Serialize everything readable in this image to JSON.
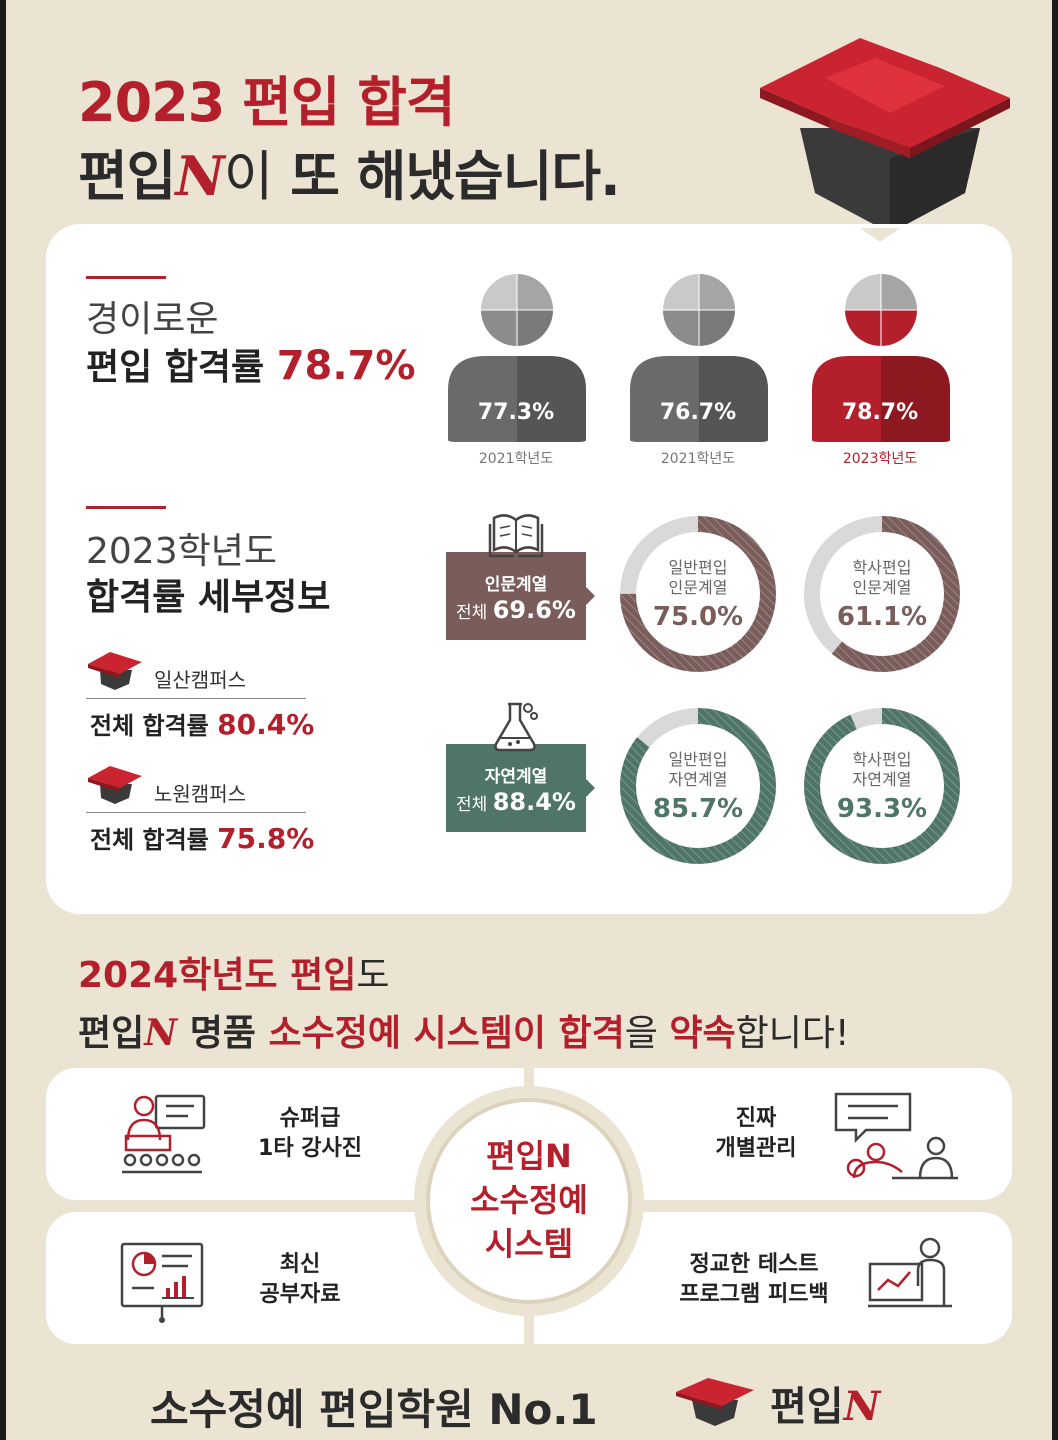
{
  "header": {
    "line1": "2023 편입 합격",
    "line2_pre": "편입",
    "line2_n": "N",
    "line2_mid": "이",
    "line2_post": " 또 해냈습니다."
  },
  "pass_rate": {
    "label_light": "경이로운",
    "label_bold": "편입 합격률",
    "value": "78.7%",
    "years": [
      {
        "value": "77.3%",
        "label": "2021학년도",
        "highlight": false
      },
      {
        "value": "76.7%",
        "label": "2021학년도",
        "highlight": false
      },
      {
        "value": "78.7%",
        "label": "2023학년도",
        "highlight": true
      }
    ]
  },
  "detail": {
    "label_light": "2023학년도",
    "label_bold": "합격률 세부정보",
    "campuses": [
      {
        "name": "일산캠퍼스",
        "rate_label": "전체 합격률",
        "rate": "80.4%"
      },
      {
        "name": "노원캠퍼스",
        "rate_label": "전체 합격률",
        "rate": "75.8%"
      }
    ],
    "humanities": {
      "title": "인문계열",
      "total_label": "전체",
      "total": "69.6%",
      "color": "#7a5d5a",
      "rings": [
        {
          "line1": "일반편입",
          "line2": "인문계열",
          "value": "75.0%",
          "fraction": 0.75
        },
        {
          "line1": "학사편입",
          "line2": "인문계열",
          "value": "61.1%",
          "fraction": 0.611
        }
      ]
    },
    "sciences": {
      "title": "자연계열",
      "total_label": "전체",
      "total": "88.4%",
      "color": "#4f7566",
      "rings": [
        {
          "line1": "일반편입",
          "line2": "자연계열",
          "value": "85.7%",
          "fraction": 0.857
        },
        {
          "line1": "학사편입",
          "line2": "자연계열",
          "value": "93.3%",
          "fraction": 0.933
        }
      ]
    }
  },
  "promise": {
    "line1_red": "2024학년도 편입",
    "line1_light": "도",
    "line2_pre": "편입",
    "line2_n": "N",
    "line2_a": " 명품 ",
    "line2_b": "소수정예 시스템이 합격",
    "line2_c": "을 ",
    "line2_d": "약속",
    "line2_e": "합니다!"
  },
  "system": {
    "center": [
      "편입N",
      "소수정예",
      "시스템"
    ],
    "features": [
      {
        "line1": "슈퍼급",
        "line2": "1타 강사진"
      },
      {
        "line1": "진짜",
        "line2": "개별관리"
      },
      {
        "line1": "최신",
        "line2": "공부자료"
      },
      {
        "line1": "정교한 테스트",
        "line2": "프로그램 피드백"
      }
    ]
  },
  "footer": {
    "slogan": "소수정예 편입학원 No.1",
    "brand_pre": "편입",
    "brand_n": "N"
  },
  "colors": {
    "brand_red": "#b3202c",
    "humanities": "#7a5d5a",
    "sciences": "#4f7566",
    "background": "#ebe4d2"
  }
}
